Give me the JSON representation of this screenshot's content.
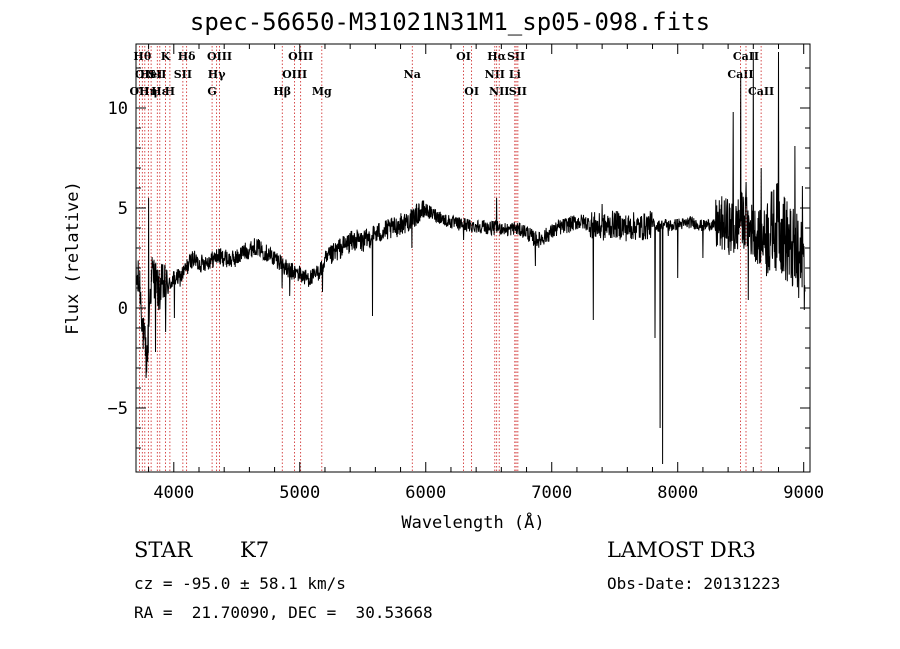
{
  "chart_data": {
    "type": "line",
    "title": "spec-56650-M31021N31M1_sp05-098.fits",
    "xlabel": "Wavelength (Å)",
    "ylabel": "Flux (relative)",
    "xlim": [
      3700,
      9050
    ],
    "ylim": [
      -8.2,
      13.2
    ],
    "xticks": [
      4000,
      5000,
      6000,
      7000,
      8000,
      9000
    ],
    "yticks": [
      -5,
      0,
      5,
      10
    ],
    "grid": false,
    "spectrum_anchors": {
      "x": [
        3700,
        3730,
        3760,
        3790,
        3810,
        3830,
        3850,
        3880,
        3910,
        3950,
        4000,
        4050,
        4100,
        4150,
        4200,
        4250,
        4300,
        4350,
        4400,
        4450,
        4500,
        4550,
        4600,
        4650,
        4700,
        4750,
        4800,
        4850,
        4900,
        4950,
        5000,
        5050,
        5100,
        5150,
        5200,
        5250,
        5300,
        5350,
        5400,
        5450,
        5500,
        5550,
        5600,
        5650,
        5700,
        5750,
        5800,
        5850,
        5900,
        5950,
        6000,
        6050,
        6100,
        6150,
        6200,
        6250,
        6300,
        6350,
        6400,
        6450,
        6500,
        6550,
        6600,
        6650,
        6700,
        6750,
        6800,
        6850,
        6900,
        6950,
        7000,
        7050,
        7100,
        7150,
        7200,
        7250,
        7300,
        7350,
        7400,
        7450,
        7500,
        7550,
        7600,
        7650,
        7700,
        7750,
        7800,
        7850,
        7900,
        7950,
        8000,
        8050,
        8100,
        8150,
        8200,
        8250,
        8300,
        8350,
        8400,
        8450,
        8500,
        8550,
        8600,
        8650,
        8700,
        8750,
        8800,
        8850,
        8900,
        8950,
        9000
      ],
      "y": [
        1.5,
        1.2,
        -1.5,
        -2.5,
        0.5,
        1.8,
        1.5,
        0.8,
        1.2,
        1.0,
        1.5,
        1.5,
        2.0,
        2.5,
        2.2,
        2.3,
        2.4,
        2.6,
        2.5,
        2.4,
        2.5,
        2.8,
        2.9,
        3.1,
        2.9,
        2.7,
        2.5,
        2.3,
        1.9,
        1.8,
        1.7,
        1.5,
        1.5,
        1.8,
        2.3,
        2.6,
        2.9,
        3.1,
        3.3,
        3.4,
        3.3,
        3.5,
        3.7,
        3.8,
        3.9,
        4.0,
        4.2,
        4.3,
        4.5,
        4.8,
        4.9,
        4.7,
        4.6,
        4.4,
        4.3,
        4.2,
        4.2,
        4.1,
        4.1,
        4.1,
        4.0,
        4.0,
        4.0,
        3.9,
        4.0,
        3.9,
        3.8,
        3.5,
        3.4,
        3.6,
        3.8,
        4.0,
        4.1,
        4.2,
        4.3,
        4.3,
        4.2,
        4.1,
        4.0,
        4.1,
        4.2,
        4.1,
        4.0,
        4.1,
        4.0,
        4.1,
        4.2,
        4.1,
        4.2,
        4.1,
        4.2,
        4.2,
        4.3,
        4.2,
        4.1,
        4.2,
        4.1,
        4.2,
        4.1,
        3.8,
        4.5,
        4.2,
        3.8,
        3.5,
        3.6,
        3.8,
        4.2,
        3.5,
        3.0,
        2.5,
        2.2
      ]
    },
    "spectrum_features": [
      {
        "x": 3780,
        "y": -3.5
      },
      {
        "x": 3800,
        "y": 5.5
      },
      {
        "x": 3855,
        "y": -2.2
      },
      {
        "x": 3935,
        "y": -1.2
      },
      {
        "x": 4005,
        "y": -0.5
      },
      {
        "x": 4860,
        "y": 1.0
      },
      {
        "x": 4920,
        "y": 0.6
      },
      {
        "x": 5180,
        "y": 0.8
      },
      {
        "x": 5577,
        "y": -0.4
      },
      {
        "x": 5890,
        "y": 3.0
      },
      {
        "x": 6300,
        "y": 3.4
      },
      {
        "x": 6563,
        "y": 5.5
      },
      {
        "x": 6870,
        "y": 2.1
      },
      {
        "x": 7330,
        "y": -0.6
      },
      {
        "x": 7400,
        "y": 5.2
      },
      {
        "x": 7820,
        "y": -1.5
      },
      {
        "x": 7860,
        "y": -6.0
      },
      {
        "x": 7880,
        "y": -7.8
      },
      {
        "x": 7925,
        "y": 3.6
      },
      {
        "x": 8000,
        "y": 1.5
      },
      {
        "x": 8200,
        "y": 2.5
      },
      {
        "x": 8340,
        "y": 4.3
      },
      {
        "x": 8440,
        "y": 9.8
      },
      {
        "x": 8500,
        "y": 11.5
      },
      {
        "x": 8542,
        "y": 6.3
      },
      {
        "x": 8560,
        "y": 0.4
      },
      {
        "x": 8600,
        "y": 12.8
      },
      {
        "x": 8662,
        "y": 7.0
      },
      {
        "x": 8700,
        "y": 2.2
      },
      {
        "x": 8760,
        "y": 3.2
      },
      {
        "x": 8800,
        "y": 12.8
      },
      {
        "x": 8850,
        "y": 5.5
      },
      {
        "x": 8900,
        "y": 1.5
      },
      {
        "x": 8930,
        "y": 8.1
      },
      {
        "x": 8960,
        "y": 0.5
      },
      {
        "x": 8990,
        "y": 6.1
      },
      {
        "x": 9005,
        "y": -0.1
      }
    ],
    "line_marks": [
      {
        "x": 3727,
        "row": 2,
        "label": "OII"
      },
      {
        "x": 3750,
        "row": 0,
        "label": "Hθ"
      },
      {
        "x": 3770,
        "row": 1,
        "label": "OII"
      },
      {
        "x": 3798,
        "row": 2,
        "label": "Hη"
      },
      {
        "x": 3820,
        "row": 1,
        "label": "HeI"
      },
      {
        "x": 3869,
        "row": 1,
        "label": "SII"
      },
      {
        "x": 3889,
        "row": 2,
        "label": "Hε"
      },
      {
        "x": 3934,
        "row": 0,
        "label": "K"
      },
      {
        "x": 3969,
        "row": 2,
        "label": "H"
      },
      {
        "x": 4072,
        "row": 1,
        "label": "SII"
      },
      {
        "x": 4102,
        "row": 0,
        "label": "Hδ"
      },
      {
        "x": 4304,
        "row": 2,
        "label": "G"
      },
      {
        "x": 4340,
        "row": 1,
        "label": "Hγ"
      },
      {
        "x": 4363,
        "row": 0,
        "label": "OIII"
      },
      {
        "x": 4861,
        "row": 2,
        "label": "Hβ"
      },
      {
        "x": 4959,
        "row": 1,
        "label": "OIII"
      },
      {
        "x": 5007,
        "row": 0,
        "label": "OIII"
      },
      {
        "x": 5175,
        "row": 2,
        "label": "Mg"
      },
      {
        "x": 5893,
        "row": 1,
        "label": "Na"
      },
      {
        "x": 6300,
        "row": 0,
        "label": "OI"
      },
      {
        "x": 6364,
        "row": 2,
        "label": "OI"
      },
      {
        "x": 6548,
        "row": 1,
        "label": "NII"
      },
      {
        "x": 6563,
        "row": 0,
        "label": "Hα"
      },
      {
        "x": 6583,
        "row": 2,
        "label": "NII"
      },
      {
        "x": 6707,
        "row": 1,
        "label": "Li"
      },
      {
        "x": 6717,
        "row": 0,
        "label": "SII"
      },
      {
        "x": 6731,
        "row": 2,
        "label": "SII"
      },
      {
        "x": 8498,
        "row": 1,
        "label": "CaII"
      },
      {
        "x": 8542,
        "row": 0,
        "label": "CaII"
      },
      {
        "x": 8662,
        "row": 2,
        "label": "CaII"
      }
    ]
  },
  "info": {
    "class": "STAR",
    "subclass": "K7",
    "survey": "LAMOST DR3",
    "cz": "cz = -95.0 ± 58.1 km/s",
    "obsdate": "Obs-Date: 20131223",
    "radec": "RA =  21.70090, DEC =  30.53668"
  },
  "colors": {
    "spectrum": "#000000",
    "line_marks": "#cc2020"
  }
}
